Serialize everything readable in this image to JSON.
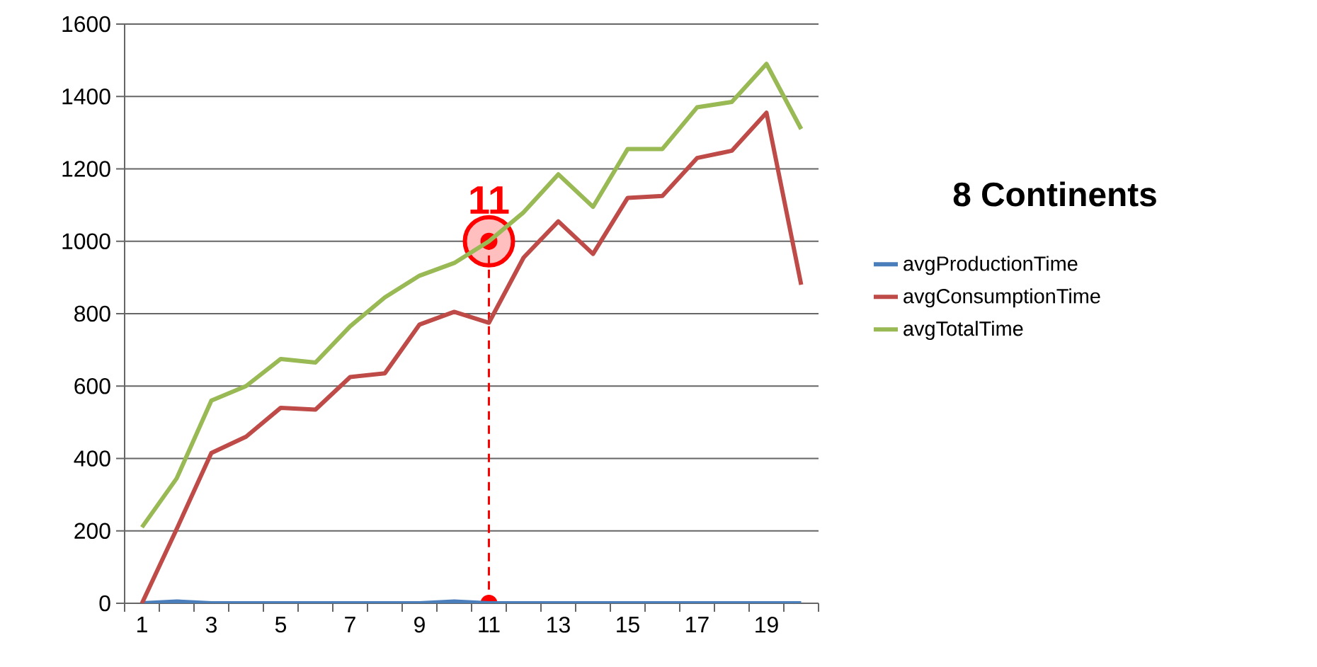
{
  "chart_data": {
    "type": "line",
    "title": "8 Continents",
    "categories": [
      "1",
      null,
      "3",
      null,
      "5",
      null,
      "7",
      null,
      "9",
      null,
      "11",
      null,
      "13",
      null,
      "15",
      null,
      "17",
      null,
      "19",
      null
    ],
    "series": [
      {
        "name": "avgProductionTime",
        "color": "#4a7ebb",
        "values": [
          0,
          5,
          0,
          0,
          0,
          0,
          0,
          0,
          0,
          5,
          0,
          0,
          0,
          0,
          0,
          0,
          0,
          0,
          0,
          0
        ]
      },
      {
        "name": "avgConsumptionTime",
        "color": "#be4b48",
        "values": [
          0,
          205,
          415,
          460,
          540,
          535,
          625,
          635,
          770,
          805,
          775,
          955,
          1055,
          965,
          1120,
          1125,
          1230,
          1250,
          1355,
          880
        ]
      },
      {
        "name": "avgTotalTime",
        "color": "#98b954",
        "values": [
          210,
          345,
          560,
          600,
          675,
          665,
          765,
          845,
          905,
          940,
          1000,
          1080,
          1185,
          1095,
          1255,
          1255,
          1370,
          1385,
          1490,
          1310
        ]
      }
    ],
    "ylim": [
      0,
      1600
    ],
    "yticks": [
      0,
      200,
      400,
      600,
      800,
      1000,
      1200,
      1400,
      1600
    ],
    "grid": "y",
    "legend": "right",
    "marker": "none",
    "line_style": "solid",
    "annotations": [
      {
        "text": "11",
        "x": "11",
        "y": 1000
      }
    ]
  }
}
